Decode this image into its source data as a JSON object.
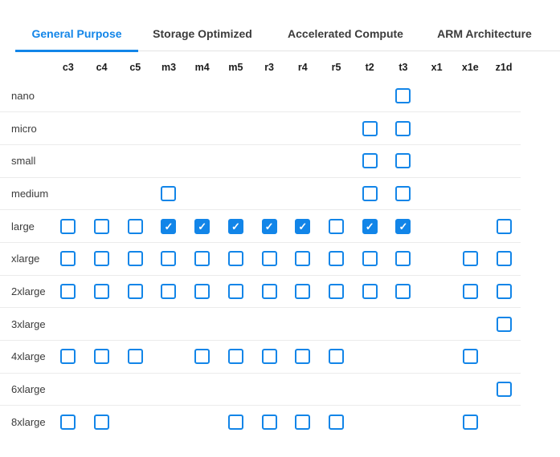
{
  "colors": {
    "accent": "#1285e8",
    "tab_inactive": "#3b3b3b",
    "row_label": "#3b3b3b",
    "header_text": "#1c1c1c",
    "separator": "#ebebeb",
    "tabbar_border": "#e3e3e3"
  },
  "icons": {
    "checkmark": "✓"
  },
  "tabs": [
    {
      "label": "General Purpose",
      "active": true
    },
    {
      "label": "Storage Optimized",
      "active": false
    },
    {
      "label": "Accelerated Compute",
      "active": false
    },
    {
      "label": "ARM Architecture",
      "active": false
    }
  ],
  "grid": {
    "columns": [
      "c3",
      "c4",
      "c5",
      "m3",
      "m4",
      "m5",
      "r3",
      "r4",
      "r5",
      "t2",
      "t3",
      "x1",
      "x1e",
      "z1d"
    ],
    "cell_legend": "null = no checkbox, 0 = unchecked, 1 = checked",
    "rows": [
      {
        "label": "nano",
        "cells": [
          null,
          null,
          null,
          null,
          null,
          null,
          null,
          null,
          null,
          null,
          0,
          null,
          null,
          null
        ]
      },
      {
        "label": "micro",
        "cells": [
          null,
          null,
          null,
          null,
          null,
          null,
          null,
          null,
          null,
          0,
          0,
          null,
          null,
          null
        ]
      },
      {
        "label": "small",
        "cells": [
          null,
          null,
          null,
          null,
          null,
          null,
          null,
          null,
          null,
          0,
          0,
          null,
          null,
          null
        ]
      },
      {
        "label": "medium",
        "cells": [
          null,
          null,
          null,
          0,
          null,
          null,
          null,
          null,
          null,
          0,
          0,
          null,
          null,
          null
        ]
      },
      {
        "label": "large",
        "cells": [
          0,
          0,
          0,
          1,
          1,
          1,
          1,
          1,
          0,
          1,
          1,
          null,
          null,
          0
        ]
      },
      {
        "label": "xlarge",
        "cells": [
          0,
          0,
          0,
          0,
          0,
          0,
          0,
          0,
          0,
          0,
          0,
          null,
          0,
          0
        ]
      },
      {
        "label": "2xlarge",
        "cells": [
          0,
          0,
          0,
          0,
          0,
          0,
          0,
          0,
          0,
          0,
          0,
          null,
          0,
          0
        ]
      },
      {
        "label": "3xlarge",
        "cells": [
          null,
          null,
          null,
          null,
          null,
          null,
          null,
          null,
          null,
          null,
          null,
          null,
          null,
          0
        ]
      },
      {
        "label": "4xlarge",
        "cells": [
          0,
          0,
          0,
          null,
          0,
          0,
          0,
          0,
          0,
          null,
          null,
          null,
          0,
          null
        ]
      },
      {
        "label": "6xlarge",
        "cells": [
          null,
          null,
          null,
          null,
          null,
          null,
          null,
          null,
          null,
          null,
          null,
          null,
          null,
          0
        ]
      },
      {
        "label": "8xlarge",
        "cells": [
          0,
          0,
          null,
          null,
          null,
          0,
          0,
          0,
          0,
          null,
          null,
          null,
          0,
          null
        ]
      }
    ]
  }
}
